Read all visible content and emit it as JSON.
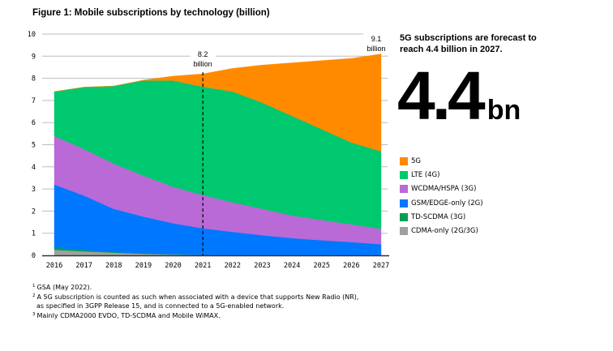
{
  "figure": {
    "title": "Figure 1: Mobile subscriptions by technology (billion)"
  },
  "side_panel": {
    "headline": "5G subscriptions are forecast to reach 4.4 billion in 2027.",
    "big_number": "4.4",
    "big_unit": "bn"
  },
  "footnotes": [
    {
      "mark": "1",
      "lines": [
        "GSA (May 2022)."
      ]
    },
    {
      "mark": "2",
      "lines": [
        "A 5G subscription is counted as such when associated with a device that supports New Radio (NR),",
        "as specified in 3GPP Release 15, and is connected to a 5G-enabled network."
      ]
    },
    {
      "mark": "3",
      "lines": [
        "Mainly CDMA2000 EVDO, TD-SCDMA and Mobile WiMAX."
      ]
    }
  ],
  "chart_data": {
    "type": "area",
    "stacked": true,
    "title": "Figure 1: Mobile subscriptions by technology (billion)",
    "xlabel": "",
    "ylabel": "",
    "x": [
      2016,
      2017,
      2018,
      2019,
      2020,
      2021,
      2022,
      2023,
      2024,
      2025,
      2026,
      2027
    ],
    "ylim": [
      0,
      10
    ],
    "yticks": [
      0,
      1,
      2,
      3,
      4,
      5,
      6,
      7,
      8,
      9,
      10
    ],
    "grid": true,
    "legend_position": "right",
    "series": [
      {
        "name": "CDMA-only (2G/3G)",
        "color": "#a0a0a0",
        "values": [
          0.25,
          0.18,
          0.12,
          0.07,
          0.04,
          0.02,
          0.01,
          0.01,
          0,
          0,
          0,
          0
        ]
      },
      {
        "name": "TD-SCDMA (3G)",
        "color": "#00a050",
        "values": [
          0.1,
          0.06,
          0.03,
          0.01,
          0.01,
          0,
          0,
          0,
          0,
          0,
          0,
          0
        ]
      },
      {
        "name": "GSM/EDGE-only (2G)",
        "color": "#0077ff",
        "values": [
          2.85,
          2.46,
          1.95,
          1.67,
          1.4,
          1.2,
          1.05,
          0.9,
          0.78,
          0.68,
          0.6,
          0.5
        ]
      },
      {
        "name": "WCDMA/HSPA (3G)",
        "color": "#b96ad6",
        "values": [
          2.2,
          2.1,
          2.05,
          1.85,
          1.65,
          1.5,
          1.34,
          1.19,
          1.02,
          0.92,
          0.8,
          0.7
        ]
      },
      {
        "name": "LTE (4G)",
        "color": "#00c86e",
        "values": [
          2.0,
          2.8,
          3.5,
          4.3,
          4.8,
          4.9,
          5.0,
          4.8,
          4.5,
          4.1,
          3.7,
          3.5
        ]
      },
      {
        "name": "5G",
        "color": "#ff8a00",
        "values": [
          0,
          0,
          0,
          0.02,
          0.2,
          0.58,
          1.05,
          1.7,
          2.4,
          3.1,
          3.8,
          4.4
        ]
      }
    ],
    "legend_order": [
      "5G",
      "LTE (4G)",
      "WCDMA/HSPA (3G)",
      "GSM/EDGE-only (2G)",
      "TD-SCDMA (3G)",
      "CDMA-only (2G/3G)"
    ],
    "annotations": [
      {
        "x": 2021,
        "value_text": "8.2",
        "unit_text": "billion",
        "marker": "dashed-vertical-line"
      },
      {
        "x": 2027,
        "value_text": "9.1",
        "unit_text": "billion"
      }
    ]
  }
}
